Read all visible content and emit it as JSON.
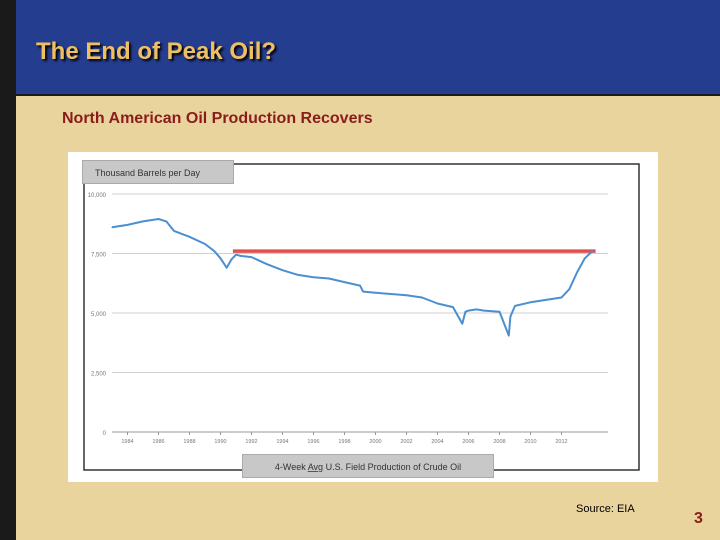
{
  "slide": {
    "title": "The End of Peak Oil?",
    "subtitle": "North American Oil Production Recovers",
    "source": "Source:  EIA",
    "page_number": "3"
  },
  "chart_data": {
    "type": "line",
    "ylabel": "Thousand Barrels per Day",
    "caption_prefix": "4-Week ",
    "caption_underlined": "Avg",
    "caption_suffix": " U.S. Field Production of Crude Oil",
    "ylim": [
      0,
      10000
    ],
    "xlim": [
      1983,
      2015
    ],
    "yticks": [
      "0",
      "2,500",
      "5,000",
      "7,500",
      "10,000"
    ],
    "ytick_values": [
      0,
      2500,
      5000,
      7500,
      10000
    ],
    "xticks": [
      "1984",
      "1986",
      "1988",
      "1990",
      "1992",
      "1994",
      "1996",
      "1998",
      "2000",
      "2002",
      "2004",
      "2006",
      "2008",
      "2010",
      "2012"
    ],
    "xtick_values": [
      1984,
      1986,
      1988,
      1990,
      1992,
      1994,
      1996,
      1998,
      2000,
      2002,
      2004,
      2006,
      2008,
      2010,
      2012
    ],
    "grid": true,
    "series": [
      {
        "color": "#4a90d0",
        "x": [
          1983.0,
          1984.0,
          1985.0,
          1986.0,
          1986.5,
          1987.0,
          1988.0,
          1989.0,
          1989.6,
          1990.0,
          1990.4,
          1990.7,
          1991.0,
          1991.3,
          1992.0,
          1993.0,
          1994.0,
          1995.0,
          1996.0,
          1997.0,
          1998.0,
          1999.0,
          1999.2,
          2000.0,
          2001.0,
          2002.0,
          2003.0,
          2004.0,
          2005.0,
          2005.6,
          2005.8,
          2006.0,
          2006.5,
          2007.0,
          2008.0,
          2008.6,
          2008.7,
          2008.8,
          2009.0,
          2010.0,
          2011.0,
          2012.0,
          2012.5,
          2013.0,
          2013.5,
          2014.0
        ],
        "y": [
          8600,
          8700,
          8850,
          8950,
          8850,
          8450,
          8200,
          7900,
          7600,
          7300,
          6900,
          7250,
          7450,
          7400,
          7350,
          7050,
          6800,
          6600,
          6500,
          6450,
          6300,
          6150,
          5900,
          5850,
          5800,
          5750,
          5650,
          5400,
          5250,
          4550,
          5050,
          5100,
          5150,
          5100,
          5050,
          4050,
          4850,
          5000,
          5300,
          5450,
          5550,
          5650,
          6000,
          6700,
          7300,
          7600
        ]
      }
    ],
    "reference_line": {
      "y": 7600,
      "x_start": 1990.8,
      "x_end": 2014.2,
      "color": "#e05050"
    }
  }
}
